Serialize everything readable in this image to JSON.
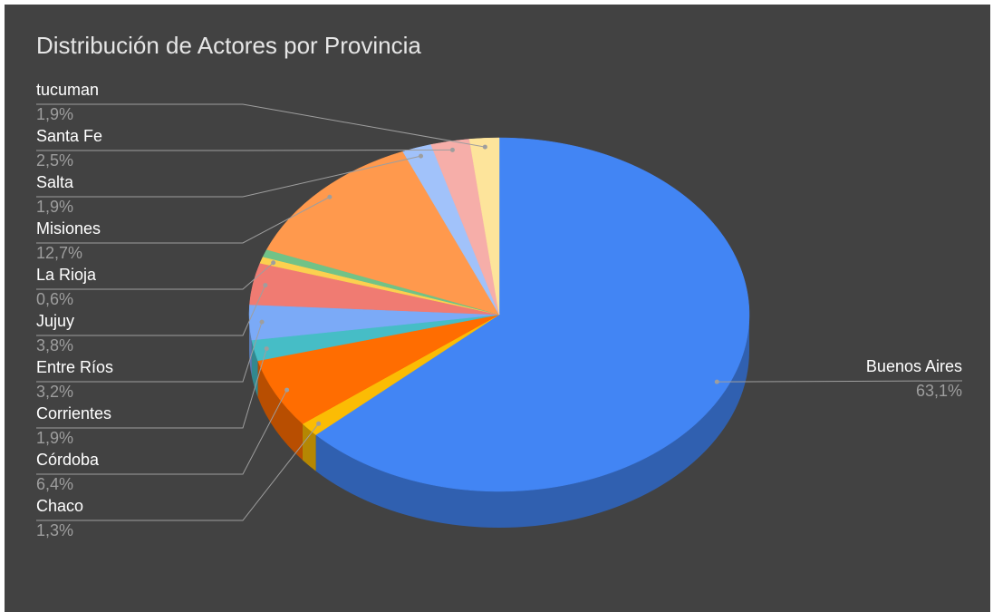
{
  "chart_data": {
    "type": "pie3d",
    "title": "Distribución de Actores por Provincia",
    "categories": [
      "Buenos Aires",
      "Chaco",
      "Córdoba",
      "Corrientes",
      "Entre Ríos",
      "Jujuy",
      "La Rioja",
      null,
      "Misiones",
      "Salta",
      "Santa Fe",
      "tucuman"
    ],
    "values": [
      63.1,
      1.3,
      6.4,
      1.9,
      3.2,
      3.8,
      0.6,
      0.7,
      12.7,
      1.9,
      2.5,
      1.9
    ],
    "value_labels": [
      "63,1%",
      "1,3%",
      "6,4%",
      "1,9%",
      "3,2%",
      "3,8%",
      "0,6%",
      null,
      "12,7%",
      "1,9%",
      "2,5%",
      "1,9%"
    ],
    "colors": [
      "#4285f4",
      "#fbbc04",
      "#ff6d01",
      "#46bdc6",
      "#7baaf7",
      "#f07b72",
      "#fcd04f",
      "#71c287",
      "#ff994d",
      "#a1c2fa",
      "#f6aea9",
      "#fde49b"
    ]
  }
}
